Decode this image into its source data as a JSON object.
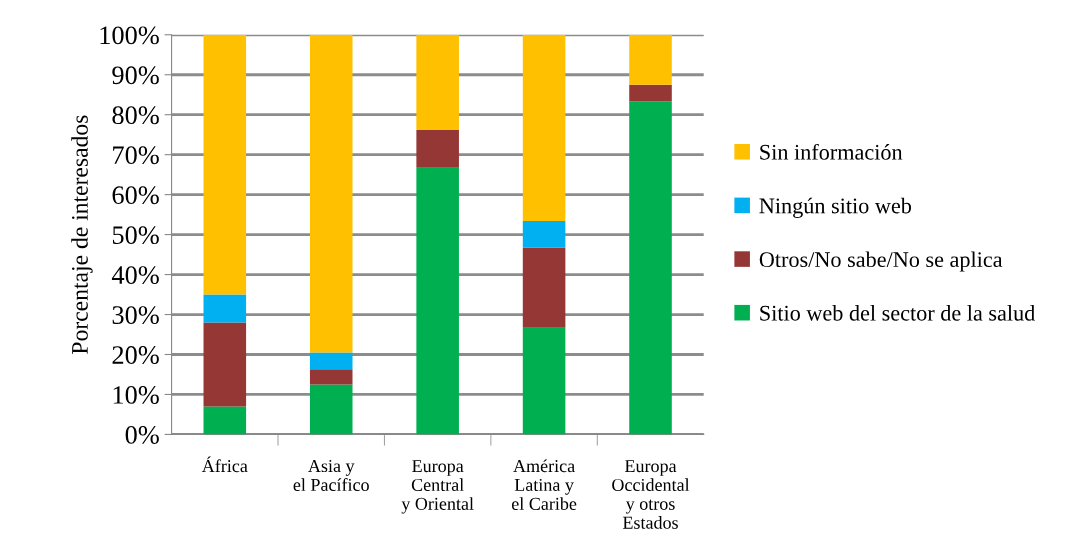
{
  "chart_data": {
    "type": "bar",
    "stacked": true,
    "ylabel": "Porcentaje de interesados",
    "categories": [
      "África",
      "Asia y\nel Pacífico",
      "Europa\nCentral\ny Oriental",
      "América\nLatina y\nel Caribe",
      "Europa\nOccidental\ny otros\nEstados"
    ],
    "series": [
      {
        "name": "Sitio web del sector de la salud",
        "color": "#00b050",
        "values": [
          7,
          12.5,
          66.7,
          26.7,
          83.3
        ]
      },
      {
        "name": "Otros/No sabe/No se aplica",
        "color": "#953735",
        "values": [
          21,
          3.8,
          9.5,
          20,
          4.2
        ]
      },
      {
        "name": "Ningún sitio web",
        "color": "#00b0f0",
        "values": [
          7,
          4.2,
          0,
          6.7,
          0
        ]
      },
      {
        "name": "Sin información",
        "color": "#ffc000",
        "values": [
          65,
          79.5,
          23.8,
          46.6,
          12.5
        ]
      }
    ],
    "ylim": [
      0,
      100
    ],
    "yticks": [
      {
        "value": 0,
        "label": "0%"
      },
      {
        "value": 10,
        "label": "10%"
      },
      {
        "value": 20,
        "label": "20%"
      },
      {
        "value": 30,
        "label": "30%"
      },
      {
        "value": 40,
        "label": "40%"
      },
      {
        "value": 50,
        "label": "50%"
      },
      {
        "value": 60,
        "label": "60%"
      },
      {
        "value": 70,
        "label": "70%"
      },
      {
        "value": 80,
        "label": "80%"
      },
      {
        "value": 90,
        "label": "90%"
      },
      {
        "value": 100,
        "label": "100%"
      }
    ],
    "grid": "y",
    "legend": "right"
  }
}
